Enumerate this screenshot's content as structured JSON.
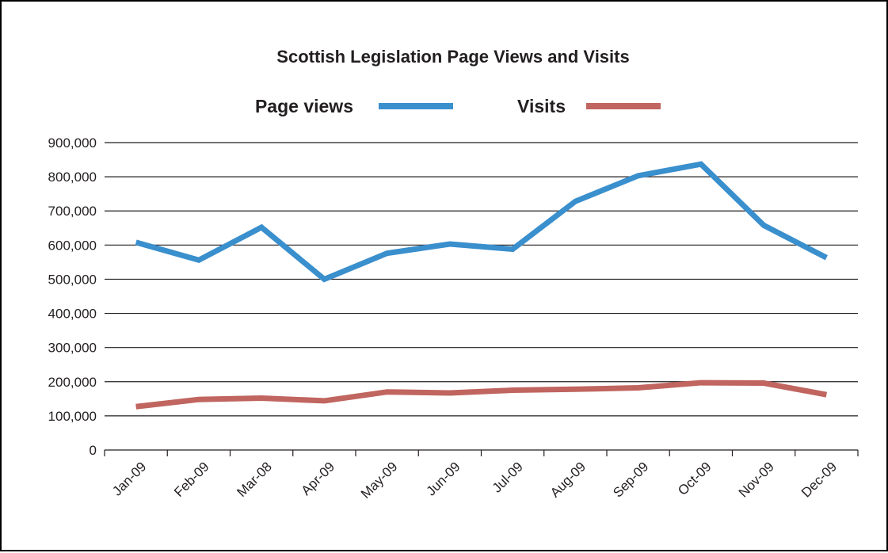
{
  "chart_data": {
    "type": "line",
    "title": "Scottish Legislation Page Views and Visits",
    "xlabel": "",
    "ylabel": "",
    "categories": [
      "Jan-09",
      "Feb-09",
      "Mar-08",
      "Apr-09",
      "May-09",
      "Jun-09",
      "Jul-09",
      "Aug-09",
      "Sep-09",
      "Oct-09",
      "Nov-09",
      "Dec-09"
    ],
    "series": [
      {
        "name": "Page views",
        "color": "#3a8fcd",
        "values": [
          608000,
          556000,
          652000,
          500000,
          576000,
          603000,
          588000,
          728000,
          803000,
          837000,
          658000,
          563000
        ]
      },
      {
        "name": "Visits",
        "color": "#c0655f",
        "values": [
          127000,
          148000,
          152000,
          144000,
          170000,
          167000,
          175000,
          178000,
          182000,
          197000,
          196000,
          162000
        ]
      }
    ],
    "ylim": [
      0,
      900000
    ],
    "yticks": [
      0,
      100000,
      200000,
      300000,
      400000,
      500000,
      600000,
      700000,
      800000,
      900000
    ],
    "ytick_labels": [
      "0",
      "100,000",
      "200,000",
      "300,000",
      "400,000",
      "500,000",
      "600,000",
      "700,000",
      "800,000",
      "900,000"
    ],
    "grid": "horizontal",
    "legend_position": "top"
  }
}
